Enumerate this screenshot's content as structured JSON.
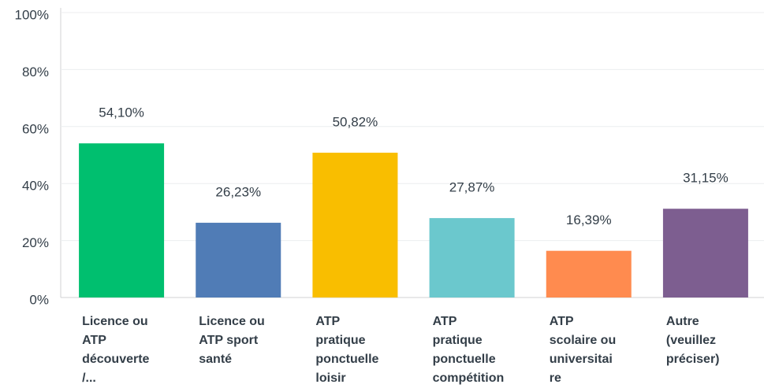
{
  "chart_data": {
    "type": "bar",
    "categories": [
      "Licence ou\nATP\ndécouverte\n/...",
      "Licence ou\nATP sport\nsanté",
      "ATP\npratique\nponctuelle\nloisir",
      "ATP\npratique\nponctuelle\ncompétition",
      "ATP\nscolaire ou\nuniversitai\nre",
      "Autre\n(veuillez\npréciser)"
    ],
    "values": [
      54.1,
      26.23,
      50.82,
      27.87,
      16.39,
      31.15
    ],
    "value_labels": [
      "54,10%",
      "26,23%",
      "50,82%",
      "27,87%",
      "16,39%",
      "31,15%"
    ],
    "colors": [
      "#00bf6f",
      "#507cb6",
      "#f9be00",
      "#6bc8cd",
      "#ff8b4f",
      "#7d5e90"
    ],
    "ylim": [
      0,
      100
    ],
    "yticks": [
      {
        "value": 0,
        "label": "0%"
      },
      {
        "value": 20,
        "label": "20%"
      },
      {
        "value": 40,
        "label": "40%"
      },
      {
        "value": 60,
        "label": "60%"
      },
      {
        "value": 80,
        "label": "80%"
      },
      {
        "value": 100,
        "label": "100%"
      }
    ],
    "grid": true
  }
}
